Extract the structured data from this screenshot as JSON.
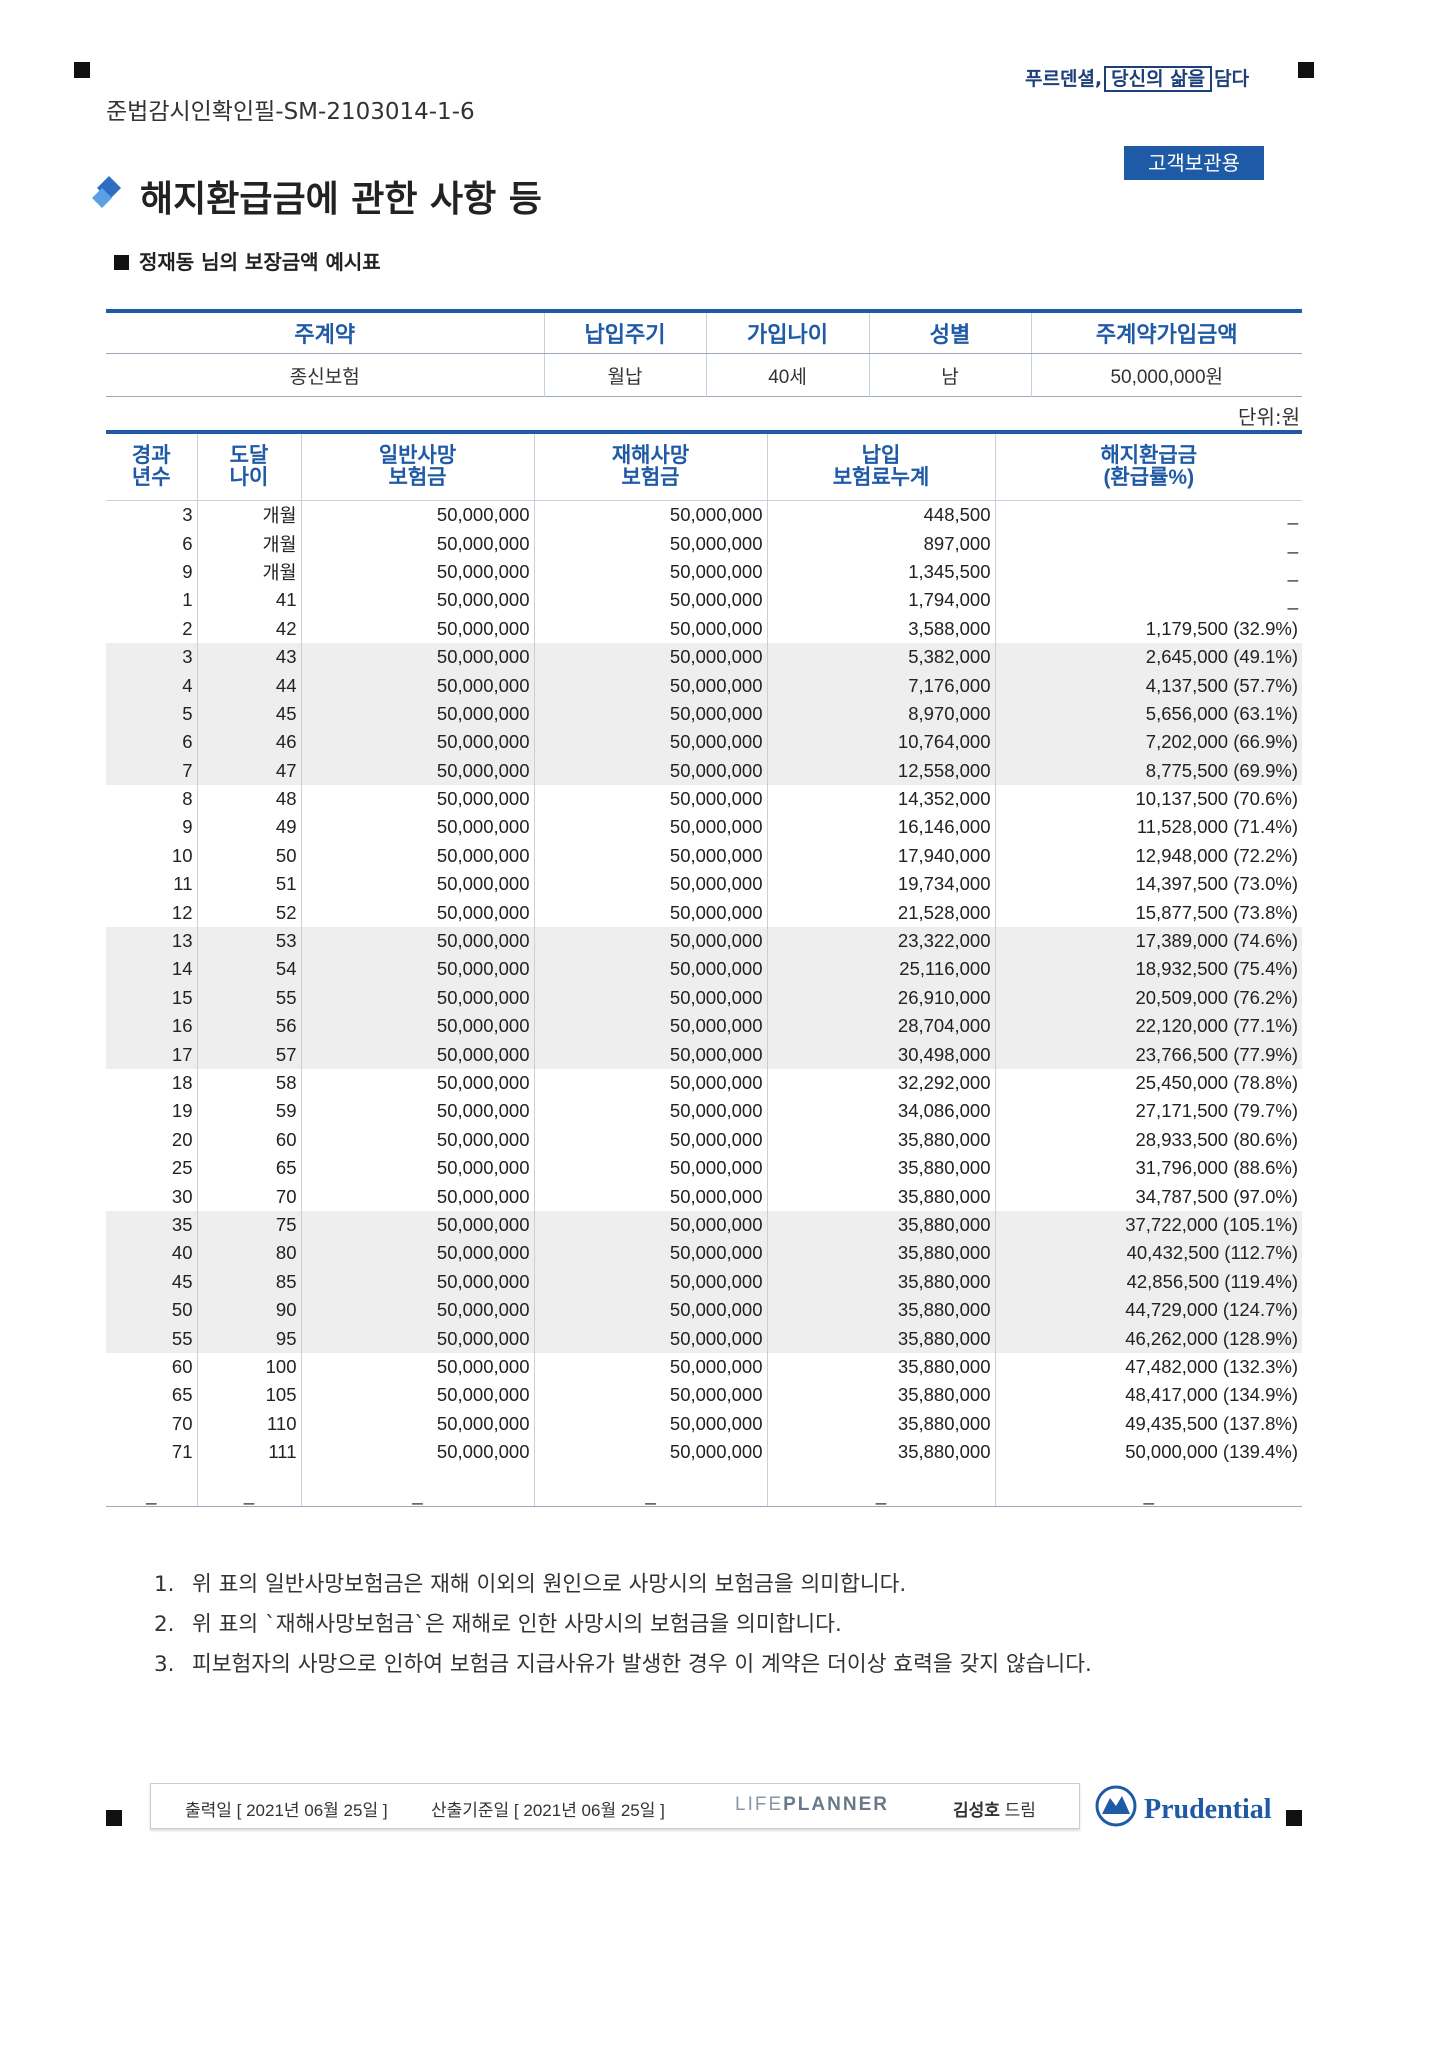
{
  "header": {
    "approval_code": "준법감시인확인필-SM-2103014-1-6",
    "slogan_before": "푸르덴셜,",
    "slogan_boxed": "당신의 삶을",
    "slogan_after": "담다",
    "customer_badge": "고객보관용"
  },
  "title": "해지환급금에 관한 사항 등",
  "subtitle": "정재동 님의 보장금액 예시표",
  "contract_table": {
    "headers": [
      "주계약",
      "납입주기",
      "가입나이",
      "성별",
      "주계약가입금액"
    ],
    "row": [
      "종신보험",
      "월납",
      "40세",
      "남",
      "50,000,000원"
    ]
  },
  "unit_label": "단위:원",
  "main_table": {
    "headers": [
      [
        "경과",
        "년수"
      ],
      [
        "도달",
        "나이"
      ],
      [
        "일반사망",
        "보험금"
      ],
      [
        "재해사망",
        "보험금"
      ],
      [
        "납입",
        "보험료누계"
      ],
      [
        "해지환급금",
        "(환급률%)"
      ]
    ],
    "rows": [
      [
        "3",
        "개월",
        "50,000,000",
        "50,000,000",
        "448,500",
        "_"
      ],
      [
        "6",
        "개월",
        "50,000,000",
        "50,000,000",
        "897,000",
        "_"
      ],
      [
        "9",
        "개월",
        "50,000,000",
        "50,000,000",
        "1,345,500",
        "_"
      ],
      [
        "1",
        "41",
        "50,000,000",
        "50,000,000",
        "1,794,000",
        "_"
      ],
      [
        "2",
        "42",
        "50,000,000",
        "50,000,000",
        "3,588,000",
        "1,179,500 (32.9%)"
      ],
      [
        "3",
        "43",
        "50,000,000",
        "50,000,000",
        "5,382,000",
        "2,645,000 (49.1%)"
      ],
      [
        "4",
        "44",
        "50,000,000",
        "50,000,000",
        "7,176,000",
        "4,137,500 (57.7%)"
      ],
      [
        "5",
        "45",
        "50,000,000",
        "50,000,000",
        "8,970,000",
        "5,656,000 (63.1%)"
      ],
      [
        "6",
        "46",
        "50,000,000",
        "50,000,000",
        "10,764,000",
        "7,202,000 (66.9%)"
      ],
      [
        "7",
        "47",
        "50,000,000",
        "50,000,000",
        "12,558,000",
        "8,775,500 (69.9%)"
      ],
      [
        "8",
        "48",
        "50,000,000",
        "50,000,000",
        "14,352,000",
        "10,137,500 (70.6%)"
      ],
      [
        "9",
        "49",
        "50,000,000",
        "50,000,000",
        "16,146,000",
        "11,528,000 (71.4%)"
      ],
      [
        "10",
        "50",
        "50,000,000",
        "50,000,000",
        "17,940,000",
        "12,948,000 (72.2%)"
      ],
      [
        "11",
        "51",
        "50,000,000",
        "50,000,000",
        "19,734,000",
        "14,397,500 (73.0%)"
      ],
      [
        "12",
        "52",
        "50,000,000",
        "50,000,000",
        "21,528,000",
        "15,877,500 (73.8%)"
      ],
      [
        "13",
        "53",
        "50,000,000",
        "50,000,000",
        "23,322,000",
        "17,389,000 (74.6%)"
      ],
      [
        "14",
        "54",
        "50,000,000",
        "50,000,000",
        "25,116,000",
        "18,932,500 (75.4%)"
      ],
      [
        "15",
        "55",
        "50,000,000",
        "50,000,000",
        "26,910,000",
        "20,509,000 (76.2%)"
      ],
      [
        "16",
        "56",
        "50,000,000",
        "50,000,000",
        "28,704,000",
        "22,120,000 (77.1%)"
      ],
      [
        "17",
        "57",
        "50,000,000",
        "50,000,000",
        "30,498,000",
        "23,766,500 (77.9%)"
      ],
      [
        "18",
        "58",
        "50,000,000",
        "50,000,000",
        "32,292,000",
        "25,450,000 (78.8%)"
      ],
      [
        "19",
        "59",
        "50,000,000",
        "50,000,000",
        "34,086,000",
        "27,171,500 (79.7%)"
      ],
      [
        "20",
        "60",
        "50,000,000",
        "50,000,000",
        "35,880,000",
        "28,933,500 (80.6%)"
      ],
      [
        "25",
        "65",
        "50,000,000",
        "50,000,000",
        "35,880,000",
        "31,796,000 (88.6%)"
      ],
      [
        "30",
        "70",
        "50,000,000",
        "50,000,000",
        "35,880,000",
        "34,787,500 (97.0%)"
      ],
      [
        "35",
        "75",
        "50,000,000",
        "50,000,000",
        "35,880,000",
        "37,722,000 (105.1%)"
      ],
      [
        "40",
        "80",
        "50,000,000",
        "50,000,000",
        "35,880,000",
        "40,432,500 (112.7%)"
      ],
      [
        "45",
        "85",
        "50,000,000",
        "50,000,000",
        "35,880,000",
        "42,856,500 (119.4%)"
      ],
      [
        "50",
        "90",
        "50,000,000",
        "50,000,000",
        "35,880,000",
        "44,729,000 (124.7%)"
      ],
      [
        "55",
        "95",
        "50,000,000",
        "50,000,000",
        "35,880,000",
        "46,262,000 (128.9%)"
      ],
      [
        "60",
        "100",
        "50,000,000",
        "50,000,000",
        "35,880,000",
        "47,482,000 (132.3%)"
      ],
      [
        "65",
        "105",
        "50,000,000",
        "50,000,000",
        "35,880,000",
        "48,417,000 (134.9%)"
      ],
      [
        "70",
        "110",
        "50,000,000",
        "50,000,000",
        "35,880,000",
        "49,435,500 (137.8%)"
      ],
      [
        "71",
        "111",
        "50,000,000",
        "50,000,000",
        "35,880,000",
        "50,000,000 (139.4%)"
      ],
      [
        "_",
        "_",
        "_",
        "_",
        "_",
        "_"
      ]
    ]
  },
  "notes": [
    {
      "num": "1.",
      "text": "위 표의 일반사망보험금은 재해 이외의 원인으로 사망시의 보험금을 의미합니다."
    },
    {
      "num": "2.",
      "text": "위 표의 `재해사망보험금`은 재해로 인한 사망시의 보험금을 의미합니다."
    },
    {
      "num": "3.",
      "text": "피보험자의 사망으로 인하여 보험금 지급사유가 발생한 경우 이 계약은 더이상 효력을 갖지 않습니다."
    }
  ],
  "footer": {
    "print_date": "출력일 [  2021년 06월 25일  ]",
    "calc_date": "산출기준일 [  2021년 06월 25일  ]",
    "lifeplanner_light": "LIFE",
    "lifeplanner_bold": "PLANNER",
    "agent_name": "김성호",
    "agent_suffix": " 드림",
    "company": "Prudential"
  },
  "colors": {
    "accent": "#1f5aa6",
    "row_shade": "#eeeeee",
    "text": "#222222"
  },
  "shaded_row_indices": [
    5,
    6,
    7,
    8,
    9,
    15,
    16,
    17,
    18,
    19,
    25,
    26,
    27,
    28,
    29
  ]
}
